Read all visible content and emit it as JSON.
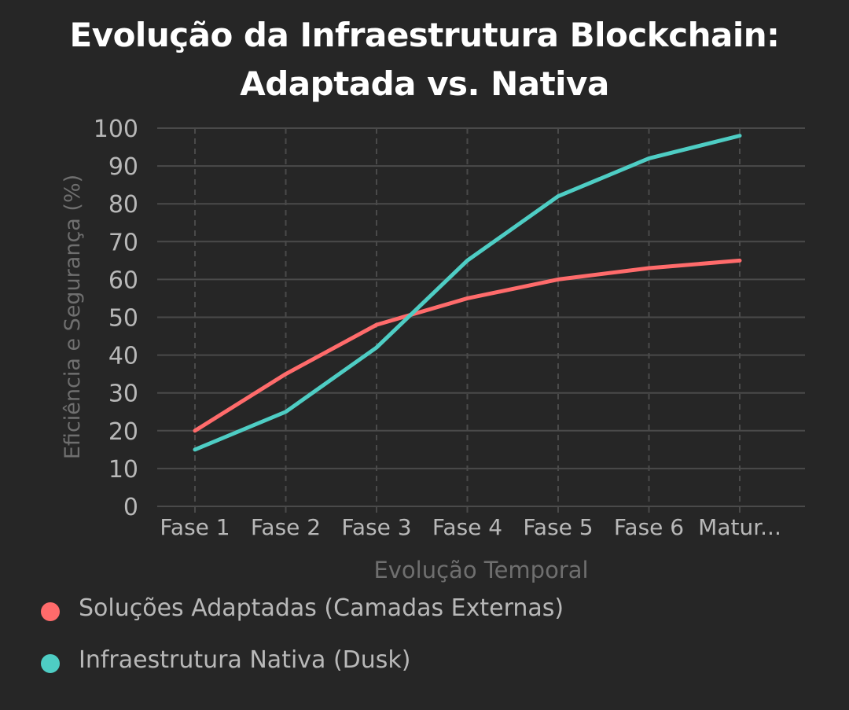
{
  "chart_data": {
    "type": "line",
    "title_lines": [
      "Evolução da Infraestrutura Blockchain:",
      "Adaptada vs. Nativa"
    ],
    "xlabel": "Evolução Temporal",
    "ylabel": "Eficiência e Segurança (%)",
    "categories": [
      "Fase 1",
      "Fase 2",
      "Fase 3",
      "Fase 4",
      "Fase 5",
      "Fase 6",
      "Matur..."
    ],
    "ylim": [
      0,
      100
    ],
    "yticks": [
      "0",
      "10",
      "20",
      "30",
      "40",
      "50",
      "60",
      "70",
      "80",
      "90",
      "100"
    ],
    "grid": true,
    "legend_position": "bottom-left",
    "series": [
      {
        "name": "Soluções Adaptadas (Camadas Externas)",
        "color": "#ff6b6b",
        "values": [
          20,
          35,
          48,
          55,
          60,
          63,
          65
        ]
      },
      {
        "name": "Infraestrutura Nativa (Dusk)",
        "color": "#4ecdc4",
        "values": [
          15,
          25,
          42,
          65,
          82,
          92,
          98
        ]
      }
    ]
  }
}
